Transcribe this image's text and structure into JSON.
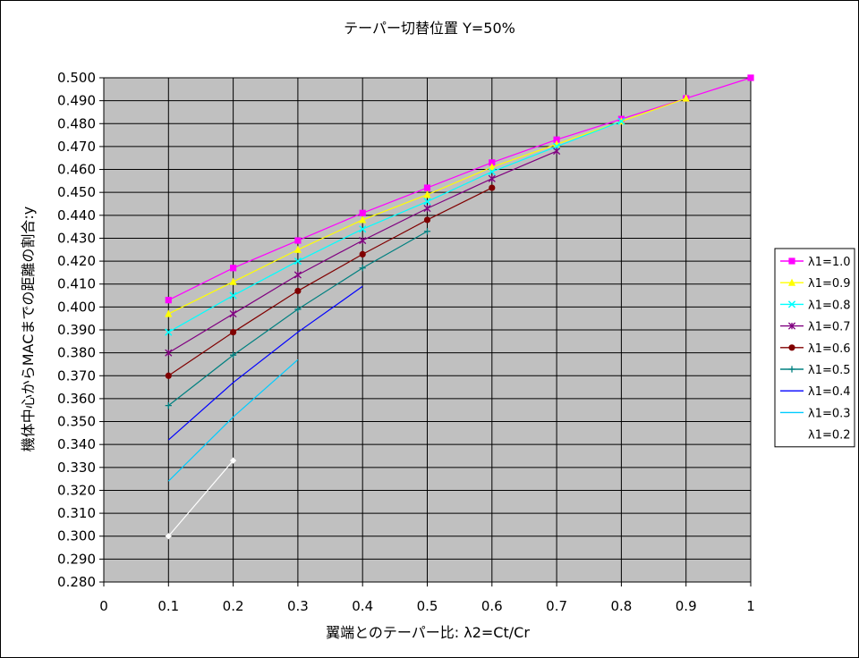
{
  "chart_data": {
    "type": "line",
    "title": "テーパー切替位置 Y=50%",
    "xlabel": "翼端とのテーパー比: λ2=Ct/Cr",
    "ylabel": "機体中心からMACまでの距離の割合:y",
    "xlim": [
      0,
      1
    ],
    "ylim": [
      0.28,
      0.5
    ],
    "xticks": [
      "0",
      "0.1",
      "0.2",
      "0.3",
      "0.4",
      "0.5",
      "0.6",
      "0.7",
      "0.8",
      "0.9",
      "1"
    ],
    "yticks": [
      "0.280",
      "0.290",
      "0.300",
      "0.310",
      "0.320",
      "0.330",
      "0.340",
      "0.350",
      "0.360",
      "0.370",
      "0.380",
      "0.390",
      "0.400",
      "0.410",
      "0.420",
      "0.430",
      "0.440",
      "0.450",
      "0.460",
      "0.470",
      "0.480",
      "0.490",
      "0.500"
    ],
    "grid": true,
    "legend_position": "right",
    "plot_background": "#c0c0c0",
    "series": [
      {
        "name": "λ1=1.0",
        "color": "#ff00ff",
        "marker": "square",
        "x": [
          0.1,
          0.2,
          0.3,
          0.4,
          0.5,
          0.6,
          0.7,
          0.8,
          0.9,
          1.0
        ],
        "y": [
          0.403,
          0.417,
          0.429,
          0.441,
          0.452,
          0.463,
          0.473,
          0.482,
          0.491,
          0.5
        ]
      },
      {
        "name": "λ1=0.9",
        "color": "#ffff00",
        "marker": "triangle",
        "x": [
          0.1,
          0.2,
          0.3,
          0.4,
          0.5,
          0.6,
          0.7,
          0.8,
          0.9
        ],
        "y": [
          0.397,
          0.411,
          0.425,
          0.438,
          0.449,
          0.461,
          0.471,
          0.481,
          0.491
        ]
      },
      {
        "name": "λ1=0.8",
        "color": "#00ffff",
        "marker": "x",
        "x": [
          0.1,
          0.2,
          0.3,
          0.4,
          0.5,
          0.6,
          0.7,
          0.8
        ],
        "y": [
          0.389,
          0.405,
          0.42,
          0.434,
          0.446,
          0.459,
          0.47,
          0.481
        ]
      },
      {
        "name": "λ1=0.7",
        "color": "#800080",
        "marker": "star",
        "x": [
          0.1,
          0.2,
          0.3,
          0.4,
          0.5,
          0.6,
          0.7
        ],
        "y": [
          0.38,
          0.397,
          0.414,
          0.429,
          0.443,
          0.456,
          0.468
        ]
      },
      {
        "name": "λ1=0.6",
        "color": "#800000",
        "marker": "circle",
        "x": [
          0.1,
          0.2,
          0.3,
          0.4,
          0.5,
          0.6
        ],
        "y": [
          0.37,
          0.389,
          0.407,
          0.423,
          0.438,
          0.452
        ]
      },
      {
        "name": "λ1=0.5",
        "color": "#008080",
        "marker": "plus",
        "x": [
          0.1,
          0.2,
          0.3,
          0.4,
          0.5
        ],
        "y": [
          0.357,
          0.379,
          0.399,
          0.417,
          0.433
        ]
      },
      {
        "name": "λ1=0.4",
        "color": "#0000ff",
        "marker": "none",
        "x": [
          0.1,
          0.2,
          0.3,
          0.4
        ],
        "y": [
          0.342,
          0.367,
          0.389,
          0.409
        ]
      },
      {
        "name": "λ1=0.3",
        "color": "#00ccff",
        "marker": "none",
        "x": [
          0.1,
          0.2,
          0.3
        ],
        "y": [
          0.324,
          0.352,
          0.377
        ]
      },
      {
        "name": "λ1=0.2",
        "color": "#ffffff",
        "marker": "diamond",
        "x": [
          0.1,
          0.2
        ],
        "y": [
          0.3,
          0.333
        ]
      }
    ]
  }
}
